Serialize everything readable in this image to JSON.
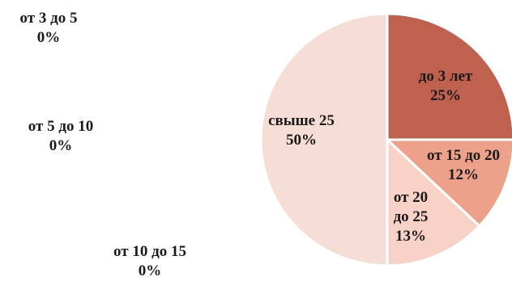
{
  "chart_data": {
    "type": "pie",
    "title": "",
    "slices": [
      {
        "label_lines": [
          "до 3 лет"
        ],
        "value": 25,
        "pct_label": "25%",
        "color": "#c0604f"
      },
      {
        "label_lines": [
          "от 3 до 5"
        ],
        "value": 0,
        "pct_label": "0%",
        "color": "#ffffff"
      },
      {
        "label_lines": [
          "от 5 до 10"
        ],
        "value": 0,
        "pct_label": "0%",
        "color": "#ffffff"
      },
      {
        "label_lines": [
          "от 10 до 15"
        ],
        "value": 0,
        "pct_label": "0%",
        "color": "#ffffff"
      },
      {
        "label_lines": [
          "от 15 до 20"
        ],
        "value": 12,
        "pct_label": "12%",
        "color": "#eda08a"
      },
      {
        "label_lines": [
          "от 20",
          "до 25"
        ],
        "value": 13,
        "pct_label": "13%",
        "color": "#f8d2c6"
      },
      {
        "label_lines": [
          "свыше  25"
        ],
        "value": 50,
        "pct_label": "50%",
        "color": "#f6ddd5"
      }
    ]
  }
}
